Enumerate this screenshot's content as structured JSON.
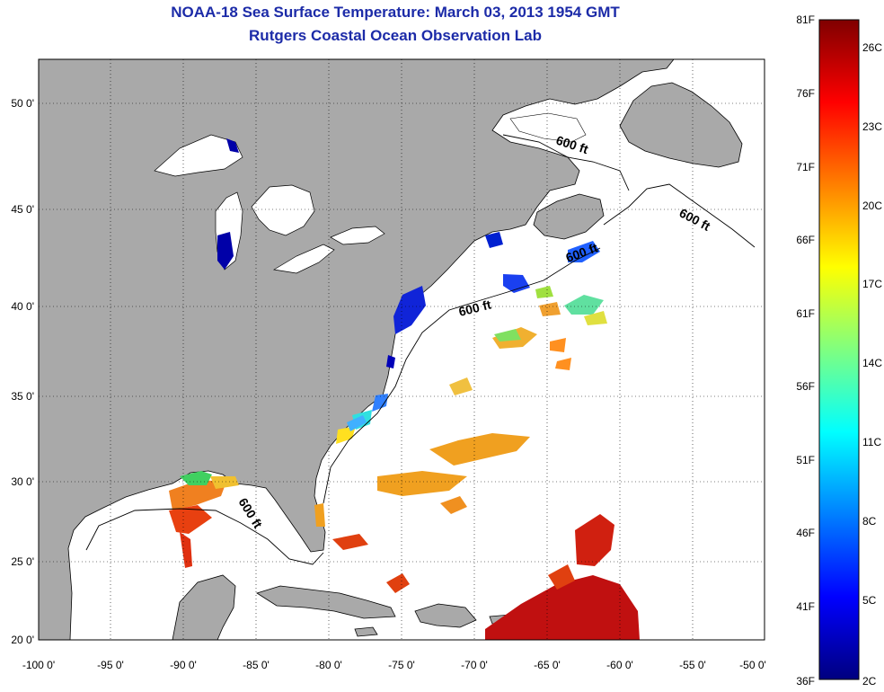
{
  "title": {
    "line1": "NOAA-18 Sea Surface Temperature:  March 03, 2013 1954 GMT",
    "line2": "Rutgers Coastal Ocean Observation Lab"
  },
  "axes": {
    "x_ticks": [
      "-100 0'",
      "-95 0'",
      "-90 0'",
      "-85 0'",
      "-80 0'",
      "-75 0'",
      "-70 0'",
      "-65 0'",
      "-60 0'",
      "-55 0'",
      "-50 0'"
    ],
    "y_ticks": [
      "50 0'",
      "45 0'",
      "40 0'",
      "35 0'",
      "30 0'",
      "25 0'",
      "20 0'"
    ]
  },
  "contours": {
    "label": "600 ft",
    "count": 4
  },
  "colorbar": {
    "f_labels": [
      "81F",
      "76F",
      "71F",
      "66F",
      "61F",
      "56F",
      "51F",
      "46F",
      "41F",
      "36F"
    ],
    "c_labels": [
      "26C",
      "23C",
      "20C",
      "17C",
      "14C",
      "11C",
      "8C",
      "5C",
      "2C"
    ]
  },
  "colors": {
    "land": "#a9a9a9",
    "ocean": "#ffffff",
    "title": "#1c2ba8",
    "scale_low": "#00007f",
    "scale_high": "#7f0000"
  }
}
